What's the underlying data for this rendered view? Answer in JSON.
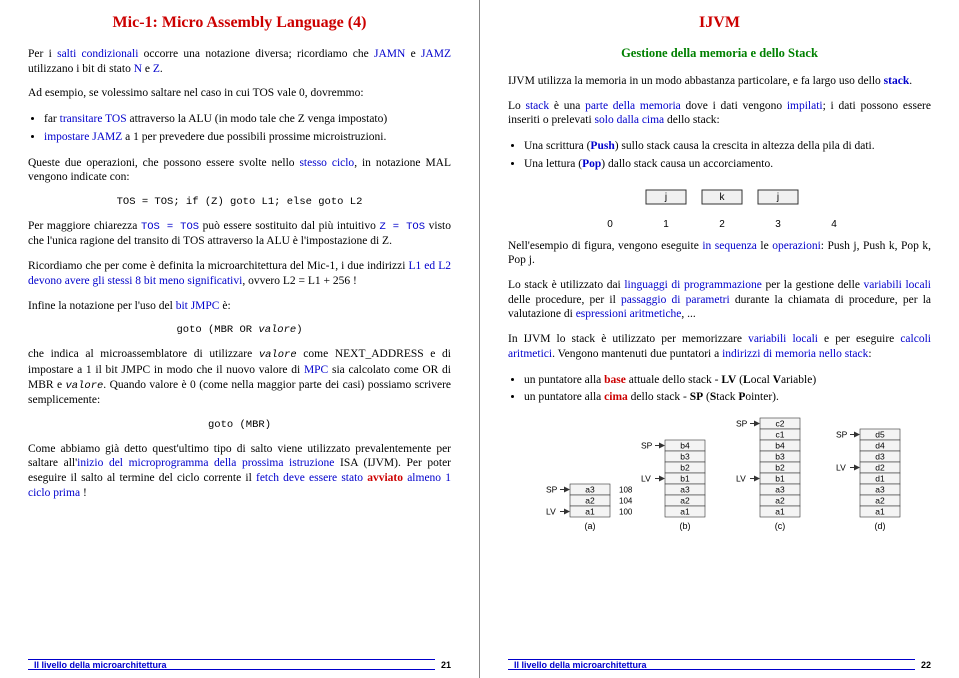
{
  "left": {
    "title": "Mic-1: Micro Assembly Language (4)",
    "p1_a": "Per i ",
    "p1_b": "salti condizionali",
    "p1_c": " occorre una notazione diversa; ricordiamo che ",
    "p1_d": "JAMN",
    "p1_e": " e ",
    "p1_f": "JAMZ",
    "p1_g": " utilizzano i bit di stato ",
    "p1_h": "N",
    "p1_i": " e ",
    "p1_j": "Z",
    "p1_k": ".",
    "p2": "Ad esempio, se volessimo saltare nel caso in cui TOS vale 0, dovremmo:",
    "li1_a": "far ",
    "li1_b": "transitare TOS",
    "li1_c": " attraverso la ALU (in modo tale che Z venga impostato)",
    "li2_a": "impostare JAMZ",
    "li2_b": " a 1 per prevedere due possibili prossime microistruzioni.",
    "p3_a": "Queste due operazioni, che possono essere svolte nello ",
    "p3_b": "stesso ciclo",
    "p3_c": ", in notazione MAL vengono indicate con:",
    "code1": "TOS = TOS; if (Z) goto L1; else goto L2",
    "p4_a": "Per maggiore chiarezza ",
    "p4_b": "TOS = TOS",
    "p4_c": " può essere sostituito dal più intuitivo ",
    "p4_d": "Z = TOS",
    "p4_e": " visto che l'unica ragione del transito di TOS attraverso la ALU è l'impostazione di Z.",
    "p5_a": "Ricordiamo che per come è definita la microarchitettura del Mic-1, i due indirizzi ",
    "p5_b": "L1 ed L2 devono avere gli stessi 8 bit meno significativi",
    "p5_c": ", ovvero L2 = L1 + 256 !",
    "p6_a": "Infine la notazione per l'uso del ",
    "p6_b": "bit JMPC",
    "p6_c": " è:",
    "code2": "goto (MBR OR valore)",
    "p7_a": "che indica al microassemblatore di utilizzare ",
    "p7_b": "valore",
    "p7_c": " come NEXT_ADDRESS e di impostare a 1 il bit JMPC in modo che il nuovo valore di ",
    "p7_d": "MPC",
    "p7_e": " sia calcolato come OR di MBR e ",
    "p7_f": "valore",
    "p7_g": ". Quando valore è 0 (come nella maggior parte dei casi) possiamo scrivere semplicemente:",
    "code3": "goto (MBR)",
    "p8_a": "Come abbiamo già detto quest'ultimo tipo di salto viene utilizzato prevalentemente per saltare all'",
    "p8_b": "inizio del microprogramma della prossima istruzione",
    "p8_c": " ISA (IJVM). Per poter eseguire il salto al termine del ciclo corrente il ",
    "p8_d": "fetch deve essere stato ",
    "p8_e": "avviato",
    "p8_f": " almeno ",
    "p8_g": "1 ciclo prima",
    "p8_h": " !",
    "footer": "Il livello della microarchitettura",
    "pagenum": "21"
  },
  "right": {
    "title": "IJVM",
    "subtitle": "Gestione della memoria e dello Stack",
    "p1_a": "IJVM utilizza la memoria in un modo abbastanza particolare, e fa largo uso dello ",
    "p1_b": "stack",
    "p1_c": ".",
    "p2_a": "Lo ",
    "p2_b": "stack",
    "p2_c": " è una ",
    "p2_d": "parte della memoria",
    "p2_e": " dove i dati vengono ",
    "p2_f": "impilati",
    "p2_g": "; i dati possono essere inseriti o prelevati ",
    "p2_h": "solo dalla cima",
    "p2_i": " dello stack:",
    "li3_a": "Una scrittura (",
    "li3_b": "Push",
    "li3_c": ") sullo stack causa la crescita in altezza della pila di dati.",
    "li4_a": "Una lettura (",
    "li4_b": "Pop",
    "li4_c": ") dallo stack causa un accorciamento.",
    "p3_a": "Nell'esempio di figura, vengono eseguite ",
    "p3_b": "in sequenza",
    "p3_c": " le ",
    "p3_d": "operazioni",
    "p3_e": ": Push j, Push k, Pop k, Pop j.",
    "p4_a": "Lo stack è utilizzato dai ",
    "p4_b": "linguaggi di programmazione",
    "p4_c": " per la gestione delle ",
    "p4_d": "variabili locali",
    "p4_e": " delle procedure, per il ",
    "p4_f": "passaggio di parametri",
    "p4_g": " durante la chiamata di procedure, per la valutazione di ",
    "p4_h": "espressioni aritmetiche",
    "p4_i": ", ...",
    "p5_a": "In IJVM lo stack è utilizzato per memorizzare ",
    "p5_b": "variabili locali",
    "p5_c": " e per eseguire ",
    "p5_d": "calcoli aritmetici",
    "p5_e": ". Vengono mantenuti due puntatori a ",
    "p5_f": "indirizzi di memoria nello stack",
    "p5_g": ":",
    "li5_a": "un puntatore alla ",
    "li5_b": "base",
    "li5_c": " attuale dello stack - ",
    "li5_d": "LV",
    "li5_e": " (",
    "li5_f": "L",
    "li5_g": "ocal ",
    "li5_h": "V",
    "li5_i": "ariable)",
    "li6_a": "un puntatore alla ",
    "li6_b": "cima",
    "li6_c": " dello stack - ",
    "li6_d": "SP",
    "li6_e": " (",
    "li6_f": "S",
    "li6_g": "tack ",
    "li6_h": "P",
    "li6_i": "ointer).",
    "footer": "Il livello della microarchitettura",
    "pagenum": "22",
    "svg1": {
      "xs": [
        "0",
        "1",
        "2",
        "3",
        "4"
      ],
      "labels": [
        "j",
        "j",
        "k",
        "j"
      ],
      "box_color": "#f0f0f0",
      "stroke": "#333"
    },
    "svg2": {
      "cols": [
        {
          "label": "(a)",
          "rows": [
            "a3",
            "a2",
            "a1"
          ],
          "addrs": [
            "108",
            "104",
            "100"
          ],
          "sp": "SP",
          "lv": "LV"
        },
        {
          "label": "(b)",
          "rows": [
            "b4",
            "b3",
            "b2",
            "b1",
            "a3",
            "a2",
            "a1"
          ],
          "sp": "SP",
          "lv": "LV"
        },
        {
          "label": "(c)",
          "rows": [
            "c2",
            "c1",
            "b4",
            "b3",
            "b2",
            "b1",
            "a3",
            "a2",
            "a1"
          ],
          "sp": "SP",
          "lv": "LV"
        },
        {
          "label": "(d)",
          "rows": [
            "d5",
            "d4",
            "d3",
            "d2",
            "d1",
            "a3",
            "a2",
            "a1"
          ],
          "sp": "SP",
          "lv": "LV"
        }
      ]
    }
  }
}
